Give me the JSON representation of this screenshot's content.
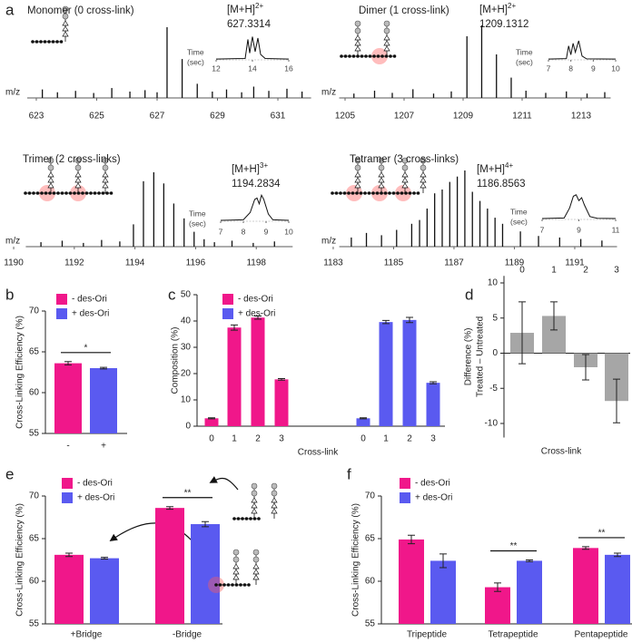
{
  "chart_data": [
    {
      "type": "spectrum",
      "label": "a",
      "title": "Monomer (0 cross-link)",
      "ion": "[M+H]",
      "charge": "2+",
      "mz": 627.3314,
      "x_label": "m/z",
      "x": [
        623.2,
        623.7,
        624.3,
        624.9,
        625.5,
        626.1,
        626.6,
        627.0,
        627.33,
        627.83,
        628.33,
        628.83,
        629.3,
        629.8,
        630.2,
        630.7,
        631.3,
        631.8
      ],
      "values": [
        12,
        8,
        10,
        7,
        14,
        9,
        11,
        8,
        100,
        55,
        20,
        9,
        12,
        8,
        16,
        10,
        13,
        9
      ],
      "xlim": [
        622.7,
        632.1
      ],
      "ylim": [
        0,
        100
      ],
      "xticks": [
        623,
        625,
        627,
        629,
        631
      ],
      "inset": {
        "label": [
          "Time",
          "(sec)"
        ],
        "x": [
          12,
          13.6,
          13.75,
          13.85,
          14.0,
          14.15,
          14.3,
          14.45,
          14.7,
          16
        ],
        "values": [
          3,
          5,
          75,
          25,
          85,
          30,
          80,
          20,
          5,
          3
        ],
        "xlim": [
          12,
          16
        ],
        "ylim": [
          0,
          100
        ],
        "xticks": [
          12,
          14,
          16
        ]
      }
    },
    {
      "type": "spectrum",
      "title": "Dimer (1 cross-link)",
      "ion": "[M+H]",
      "charge": "2+",
      "mz": 1209.1312,
      "x_label": "m/z",
      "x": [
        1205.3,
        1206.0,
        1206.6,
        1207.3,
        1208.0,
        1208.6,
        1209.13,
        1209.63,
        1210.13,
        1210.63,
        1211.13,
        1211.8,
        1212.5,
        1213.2,
        1213.8
      ],
      "values": [
        6,
        10,
        7,
        12,
        6,
        9,
        85,
        100,
        60,
        28,
        10,
        7,
        9,
        6,
        8
      ],
      "xlim": [
        1204.8,
        1214
      ],
      "ylim": [
        0,
        100
      ],
      "xticks": [
        1205,
        1207,
        1209,
        1211,
        1213
      ],
      "inset": {
        "label": [
          "Time",
          "(sec)"
        ],
        "x": [
          7,
          7.8,
          7.9,
          8.0,
          8.1,
          8.2,
          8.35,
          8.5,
          8.7,
          10
        ],
        "values": [
          3,
          5,
          55,
          20,
          65,
          30,
          75,
          15,
          4,
          3
        ],
        "xlim": [
          7,
          10
        ],
        "ylim": [
          0,
          100
        ],
        "xticks": [
          7,
          8,
          9,
          10
        ]
      }
    },
    {
      "type": "spectrum",
      "title": "Trimer (2 cross-links)",
      "ion": "[M+H]",
      "charge": "3+",
      "mz": 1194.2834,
      "x_label": "m/z",
      "x": [
        1190.9,
        1191.6,
        1192.3,
        1192.9,
        1193.5,
        1193.95,
        1194.28,
        1194.62,
        1194.95,
        1195.28,
        1195.62,
        1195.95,
        1196.28,
        1196.62,
        1197.2,
        1197.9,
        1198.6
      ],
      "values": [
        6,
        8,
        5,
        9,
        7,
        30,
        88,
        100,
        85,
        58,
        38,
        20,
        10,
        6,
        8,
        5,
        7
      ],
      "xlim": [
        1190.4,
        1199.2
      ],
      "ylim": [
        0,
        100
      ],
      "xticks": [
        1190,
        1192,
        1194,
        1196,
        1198
      ],
      "inset": {
        "label": [
          "Time",
          "(sec)"
        ],
        "x": [
          7,
          8.0,
          8.3,
          8.5,
          8.6,
          8.7,
          8.8,
          8.9,
          9.1,
          9.3,
          10
        ],
        "values": [
          3,
          5,
          30,
          75,
          80,
          60,
          90,
          75,
          25,
          5,
          3
        ],
        "xlim": [
          7,
          10
        ],
        "ylim": [
          0,
          100
        ],
        "xticks": [
          7,
          8,
          9,
          10
        ]
      }
    },
    {
      "type": "spectrum",
      "title": "Tetramer (3 cross-links)",
      "ion": "[M+H]",
      "charge": "4+",
      "mz": 1186.8563,
      "x_label": "m/z",
      "x": [
        1183.6,
        1184.1,
        1184.6,
        1185.1,
        1185.6,
        1185.86,
        1186.11,
        1186.36,
        1186.61,
        1186.86,
        1187.11,
        1187.36,
        1187.61,
        1187.86,
        1188.11,
        1188.36,
        1188.61,
        1189.2,
        1189.8,
        1190.5,
        1191.2,
        1191.9
      ],
      "values": [
        12,
        18,
        15,
        22,
        30,
        35,
        50,
        70,
        75,
        85,
        92,
        100,
        72,
        60,
        50,
        38,
        30,
        20,
        14,
        12,
        10,
        8
      ],
      "xlim": [
        1183.2,
        1192.4
      ],
      "ylim": [
        0,
        100
      ],
      "xticks": [
        1183,
        1185,
        1187,
        1189,
        1191
      ],
      "inset": {
        "label": [
          "Time",
          "(sec)"
        ],
        "x": [
          7,
          8.2,
          8.5,
          8.7,
          8.85,
          9.0,
          9.15,
          9.3,
          9.6,
          10,
          11
        ],
        "values": [
          3,
          5,
          40,
          80,
          85,
          65,
          75,
          50,
          10,
          4,
          3
        ],
        "xlim": [
          7,
          11
        ],
        "ylim": [
          0,
          100
        ],
        "xticks": [
          7,
          9,
          11
        ]
      }
    },
    {
      "type": "bar",
      "label": "b",
      "y_label": [
        "Cross-Linking Efficiency (%)"
      ],
      "categories": [
        "-",
        "+"
      ],
      "series": [
        {
          "name": "- des-Ori",
          "color": "#f0178a",
          "values": [
            63.6,
            null
          ],
          "errors": [
            0.2,
            null
          ]
        },
        {
          "name": "+ des-Ori",
          "color": "#5a5af0",
          "values": [
            null,
            63.0
          ],
          "errors": [
            null,
            0.1
          ]
        }
      ],
      "ylim": [
        55,
        70
      ],
      "yticks": [
        55,
        60,
        65,
        70
      ],
      "significance": "*"
    },
    {
      "type": "bar",
      "label": "c",
      "y_label": [
        "Composition (%)"
      ],
      "x_label": "Cross-link",
      "categories": [
        "0",
        "1",
        "2",
        "3"
      ],
      "grouping": "by_series",
      "series": [
        {
          "name": "- des-Ori",
          "color": "#f0178a",
          "values": [
            3,
            37.5,
            41.3,
            17.8
          ],
          "errors": [
            0.2,
            1,
            0.6,
            0.3
          ]
        },
        {
          "name": "+ des-Ori",
          "color": "#5a5af0",
          "values": [
            3,
            39.6,
            40.4,
            16.5
          ],
          "errors": [
            0.2,
            0.6,
            1,
            0.4
          ]
        }
      ],
      "ylim": [
        0,
        50
      ],
      "yticks": [
        0,
        10,
        20,
        30,
        40,
        50
      ]
    },
    {
      "type": "bar",
      "label": "d",
      "y_label": [
        "Difference (%)",
        "Treated – Untreated"
      ],
      "x_label": "Cross-link",
      "categories": [
        "0",
        "1",
        "2",
        "3"
      ],
      "category_axis": "top",
      "series": [
        {
          "color": "#a6a6a6",
          "values": [
            2.9,
            5.3,
            -2,
            -6.8
          ],
          "errors": [
            4.4,
            2,
            1.8,
            3.1
          ]
        }
      ],
      "ylim": [
        -12,
        11
      ],
      "yticks": [
        -10,
        -5,
        0,
        5,
        10
      ]
    },
    {
      "type": "bar",
      "label": "e",
      "y_label": [
        "Cross-Linking Efficiency (%)"
      ],
      "categories": [
        "+Bridge",
        "-Bridge"
      ],
      "series": [
        {
          "name": "- des-Ori",
          "color": "#f0178a",
          "values": [
            63.1,
            68.6
          ],
          "errors": [
            0.2,
            0.15
          ]
        },
        {
          "name": "+ des-Ori",
          "color": "#5a5af0",
          "values": [
            62.7,
            66.7
          ],
          "errors": [
            0.1,
            0.3
          ]
        }
      ],
      "ylim": [
        55,
        70
      ],
      "yticks": [
        55,
        60,
        65,
        70
      ],
      "significance": [
        null,
        "**"
      ]
    },
    {
      "type": "bar",
      "label": "f",
      "y_label": [
        "Cross-Linking Efficiency (%)"
      ],
      "categories": [
        "Tripeptide",
        "Tetrapeptide",
        "Pentapeptide"
      ],
      "series": [
        {
          "name": "- des-Ori",
          "color": "#f0178a",
          "values": [
            64.9,
            59.3,
            63.9
          ],
          "errors": [
            0.5,
            0.5,
            0.15
          ]
        },
        {
          "name": "+ des-Ori",
          "color": "#5a5af0",
          "values": [
            62.4,
            62.4,
            63.1
          ],
          "errors": [
            0.8,
            0.1,
            0.2
          ]
        }
      ],
      "ylim": [
        55,
        70
      ],
      "yticks": [
        55,
        60,
        65,
        70
      ],
      "significance": [
        null,
        "**",
        "**"
      ]
    }
  ]
}
